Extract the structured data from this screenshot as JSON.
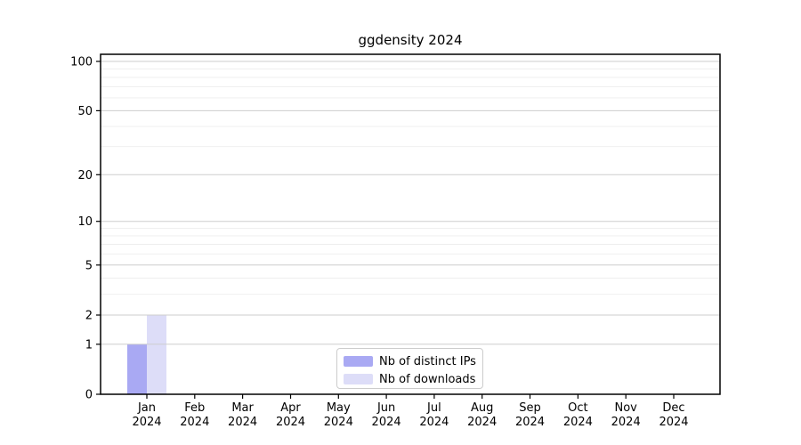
{
  "chart_data": {
    "type": "bar",
    "title": "ggdensity 2024",
    "categories": [
      "Jan",
      "Feb",
      "Mar",
      "Apr",
      "May",
      "Jun",
      "Jul",
      "Aug",
      "Sep",
      "Oct",
      "Nov",
      "Dec"
    ],
    "category_year": "2024",
    "series": [
      {
        "name": "Nb of distinct IPs",
        "color": "#a9a9f3",
        "values": [
          1,
          0,
          0,
          0,
          0,
          0,
          0,
          0,
          0,
          0,
          0,
          0
        ]
      },
      {
        "name": "Nb of downloads",
        "color": "#ddddf8",
        "values": [
          2,
          0,
          0,
          0,
          0,
          0,
          0,
          0,
          0,
          0,
          0,
          0
        ]
      }
    ],
    "xlabel": "",
    "ylabel": "",
    "yscale": "log1p",
    "ylim": [
      0,
      113
    ],
    "y_ticks": [
      100,
      50,
      20,
      10,
      5,
      2,
      1,
      0
    ],
    "y_minor_gridlines": [
      3,
      4,
      6,
      7,
      8,
      9,
      30,
      40,
      60,
      70,
      80,
      90
    ],
    "grid": true,
    "legend_position": "bottom-center",
    "colors": {
      "major_grid": "#cdcdcd",
      "minor_grid": "#ededed",
      "axis": "#000000",
      "text": "#000000",
      "background": "#ffffff",
      "legend_border": "#cccccc"
    }
  }
}
